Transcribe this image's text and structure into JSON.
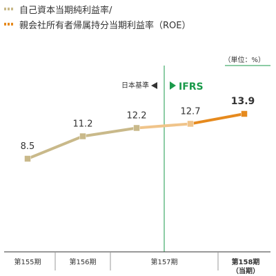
{
  "legend": {
    "line1": "自己資本当期純利益率/",
    "line2": "親会社所有者帰属持分当期利益率（ROE）",
    "color1": "#c9b98a",
    "color2": "#e68a1e"
  },
  "unit_label": "（単位：%）",
  "standards": {
    "jgaap_label": "日本基準",
    "ifrs_label": "IFRS",
    "ifrs_color": "#1a9a4a"
  },
  "chart_data": {
    "type": "line",
    "x": [
      "第155期",
      "第156期",
      "第157期",
      "第157期",
      "第158期"
    ],
    "categories": [
      "第155期",
      "第156期",
      "第157期",
      "第158期（当期）"
    ],
    "points": [
      {
        "period": "第155期",
        "value": 8.5,
        "standard": "日本基準"
      },
      {
        "period": "第156期",
        "value": 11.2,
        "standard": "日本基準"
      },
      {
        "period": "第157期",
        "value": 12.2,
        "standard": "日本基準"
      },
      {
        "period": "第157期",
        "value": 12.7,
        "standard": "IFRS"
      },
      {
        "period": "第158期",
        "value": 13.9,
        "standard": "IFRS"
      }
    ],
    "value_labels": [
      "8.5",
      "11.2",
      "12.2",
      "12.7",
      "13.9"
    ],
    "tick_labels": [
      {
        "line1": "第155期",
        "line2": ""
      },
      {
        "line1": "第156期",
        "line2": ""
      },
      {
        "line1": "第157期",
        "line2": ""
      },
      {
        "line1": "第158期",
        "line2": "（当期）"
      }
    ],
    "colors": {
      "jgaap": "#c9b98a",
      "transition": "#f0c48a",
      "ifrs": "#e68a1e"
    }
  }
}
